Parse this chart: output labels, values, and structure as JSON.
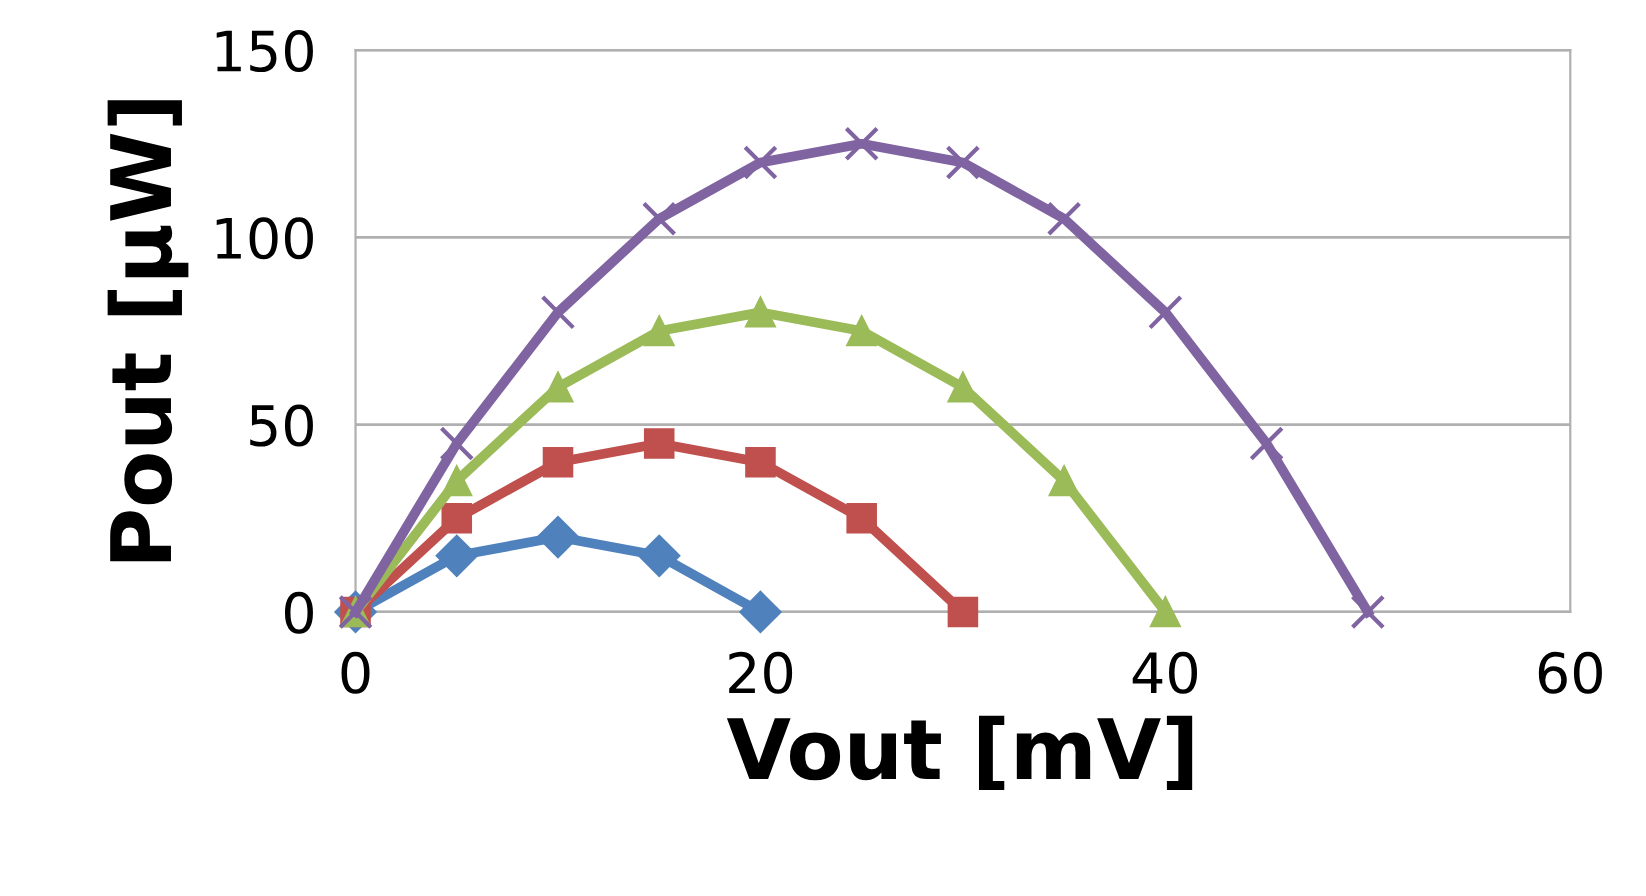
{
  "chart_data": {
    "type": "line",
    "xlabel": "Vout [mV]",
    "ylabel": "Pout [μW]",
    "xlim": [
      0,
      60
    ],
    "xticks": [
      0,
      20,
      40,
      60
    ],
    "ylim": [
      0,
      150
    ],
    "yticks": [
      0,
      50,
      100,
      150
    ],
    "grid": "y",
    "legend": false,
    "line_style": "solid",
    "series": [
      {
        "color": "#4f81bd",
        "marker": "diamond",
        "x": [
          0,
          5,
          10,
          15,
          20
        ],
        "values": [
          0,
          15,
          20,
          15,
          0
        ]
      },
      {
        "color": "#c0504d",
        "marker": "square",
        "x": [
          0,
          5,
          10,
          15,
          20,
          25,
          30
        ],
        "values": [
          0,
          25,
          40,
          45,
          40,
          25,
          0
        ]
      },
      {
        "color": "#9bbb59",
        "marker": "triangle",
        "x": [
          0,
          5,
          10,
          15,
          20,
          25,
          30,
          35,
          40
        ],
        "values": [
          0,
          35,
          60,
          75,
          80,
          75,
          60,
          35,
          0
        ]
      },
      {
        "color": "#8064a2",
        "marker": "cross",
        "x": [
          0,
          5,
          10,
          15,
          20,
          25,
          30,
          35,
          40,
          45,
          50
        ],
        "values": [
          0,
          45,
          80,
          105,
          120,
          125,
          120,
          105,
          80,
          45,
          0
        ]
      }
    ]
  }
}
